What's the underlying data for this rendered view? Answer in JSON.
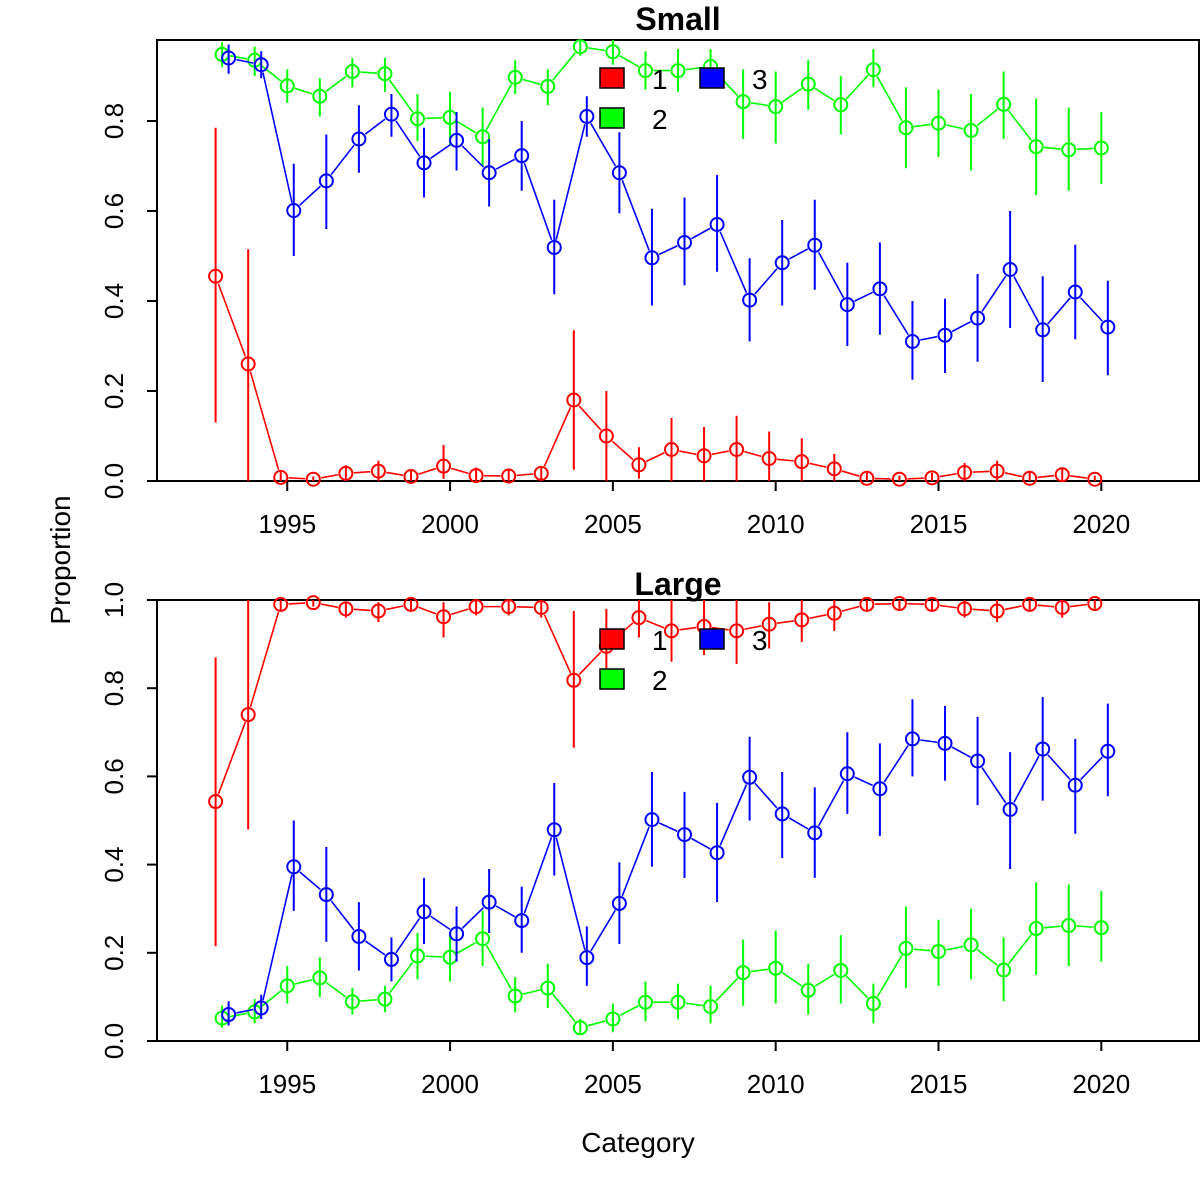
{
  "chart_data": [
    {
      "type": "scatter",
      "title": "Small",
      "xlabel": "Category",
      "ylabel": "Proportion",
      "xlim": [
        1991,
        2023
      ],
      "ylim": [
        0,
        0.98
      ],
      "xticks": [
        "1995",
        "2000",
        "2005",
        "2010",
        "2015",
        "2020"
      ],
      "yticks": [
        "0.0",
        "0.2",
        "0.4",
        "0.6",
        "0.8"
      ],
      "legend": [
        {
          "label": "1",
          "color": "#ff0000"
        },
        {
          "label": "2",
          "color": "#00ff00"
        },
        {
          "label": "3",
          "color": "#0000ff"
        }
      ],
      "series": [
        {
          "name": "1",
          "color": "#ff0000",
          "offset": -0.2,
          "x": [
            1993,
            1994,
            1995,
            1996,
            1997,
            1998,
            1999,
            2000,
            2001,
            2002,
            2003,
            2004,
            2005,
            2006,
            2007,
            2008,
            2009,
            2010,
            2011,
            2012,
            2013,
            2014,
            2015,
            2016,
            2017,
            2018,
            2019,
            2020
          ],
          "y": [
            0.455,
            0.26,
            0.008,
            0.004,
            0.017,
            0.022,
            0.01,
            0.033,
            0.012,
            0.011,
            0.017,
            0.18,
            0.1,
            0.036,
            0.07,
            0.056,
            0.07,
            0.05,
            0.043,
            0.027,
            0.006,
            0.004,
            0.007,
            0.019,
            0.022,
            0.006,
            0.014,
            0.004
          ],
          "lo": [
            0.13,
            0.0,
            0.0,
            0.0,
            0.0,
            0.0,
            0.0,
            0.005,
            0.0,
            0.0,
            0.0,
            0.025,
            0.0,
            0.005,
            0.0,
            0.0,
            0.0,
            0.0,
            0.0,
            0.0,
            0.0,
            0.0,
            0.0,
            0.0,
            0.0,
            0.0,
            0.0,
            0.0
          ],
          "hi": [
            0.785,
            0.515,
            0.02,
            0.01,
            0.035,
            0.045,
            0.025,
            0.08,
            0.03,
            0.028,
            0.03,
            0.335,
            0.2,
            0.075,
            0.14,
            0.12,
            0.145,
            0.11,
            0.095,
            0.06,
            0.018,
            0.012,
            0.018,
            0.04,
            0.045,
            0.02,
            0.03,
            0.012
          ]
        },
        {
          "name": "2",
          "color": "#00ff00",
          "offset": 0.0,
          "x": [
            1993,
            1994,
            1995,
            1996,
            1997,
            1998,
            1999,
            2000,
            2001,
            2002,
            2003,
            2004,
            2005,
            2006,
            2007,
            2008,
            2009,
            2010,
            2011,
            2012,
            2013,
            2014,
            2015,
            2016,
            2017,
            2018,
            2019,
            2020
          ],
          "y": [
            0.948,
            0.935,
            0.878,
            0.855,
            0.91,
            0.905,
            0.805,
            0.808,
            0.765,
            0.897,
            0.877,
            0.965,
            0.954,
            0.912,
            0.912,
            0.921,
            0.843,
            0.832,
            0.882,
            0.836,
            0.914,
            0.785,
            0.795,
            0.779,
            0.837,
            0.743,
            0.736,
            0.74
          ],
          "lo": [
            0.92,
            0.9,
            0.84,
            0.81,
            0.875,
            0.865,
            0.755,
            0.745,
            0.7,
            0.86,
            0.835,
            0.945,
            0.925,
            0.87,
            0.865,
            0.88,
            0.76,
            0.75,
            0.825,
            0.77,
            0.875,
            0.695,
            0.72,
            0.69,
            0.76,
            0.635,
            0.645,
            0.66
          ],
          "hi": [
            0.975,
            0.965,
            0.915,
            0.895,
            0.94,
            0.94,
            0.86,
            0.865,
            0.83,
            0.935,
            0.915,
            0.98,
            0.98,
            0.955,
            0.96,
            0.96,
            0.915,
            0.91,
            0.935,
            0.9,
            0.96,
            0.875,
            0.87,
            0.86,
            0.91,
            0.85,
            0.83,
            0.82
          ]
        },
        {
          "name": "3",
          "color": "#0000ff",
          "offset": 0.2,
          "x": [
            1993,
            1994,
            1995,
            1996,
            1997,
            1998,
            1999,
            2000,
            2001,
            2002,
            2003,
            2004,
            2005,
            2006,
            2007,
            2008,
            2009,
            2010,
            2011,
            2012,
            2013,
            2014,
            2015,
            2016,
            2017,
            2018,
            2019,
            2020
          ],
          "y": [
            0.94,
            0.925,
            0.601,
            0.667,
            0.76,
            0.815,
            0.707,
            0.757,
            0.685,
            0.723,
            0.519,
            0.81,
            0.685,
            0.496,
            0.53,
            0.57,
            0.402,
            0.485,
            0.524,
            0.392,
            0.427,
            0.31,
            0.324,
            0.362,
            0.47,
            0.336,
            0.42,
            0.342
          ],
          "lo": [
            0.905,
            0.895,
            0.5,
            0.56,
            0.685,
            0.765,
            0.63,
            0.69,
            0.61,
            0.645,
            0.415,
            0.765,
            0.595,
            0.39,
            0.435,
            0.465,
            0.31,
            0.39,
            0.425,
            0.3,
            0.325,
            0.225,
            0.24,
            0.265,
            0.34,
            0.22,
            0.315,
            0.235
          ],
          "hi": [
            0.97,
            0.955,
            0.705,
            0.77,
            0.835,
            0.86,
            0.785,
            0.82,
            0.76,
            0.8,
            0.625,
            0.855,
            0.775,
            0.605,
            0.63,
            0.68,
            0.495,
            0.58,
            0.625,
            0.485,
            0.53,
            0.4,
            0.405,
            0.46,
            0.6,
            0.455,
            0.525,
            0.445
          ]
        }
      ]
    },
    {
      "type": "scatter",
      "title": "Large",
      "xlabel": "Category",
      "ylabel": "Proportion",
      "xlim": [
        1991,
        2023
      ],
      "ylim": [
        0,
        1.0
      ],
      "xticks": [
        "1995",
        "2000",
        "2005",
        "2010",
        "2015",
        "2020"
      ],
      "yticks": [
        "0.0",
        "0.2",
        "0.4",
        "0.6",
        "0.8",
        "1.0"
      ],
      "legend": [
        {
          "label": "1",
          "color": "#ff0000"
        },
        {
          "label": "2",
          "color": "#00ff00"
        },
        {
          "label": "3",
          "color": "#0000ff"
        }
      ],
      "series": [
        {
          "name": "1",
          "color": "#ff0000",
          "offset": -0.2,
          "x": [
            1993,
            1994,
            1995,
            1996,
            1997,
            1998,
            1999,
            2000,
            2001,
            2002,
            2003,
            2004,
            2005,
            2006,
            2007,
            2008,
            2009,
            2010,
            2011,
            2012,
            2013,
            2014,
            2015,
            2016,
            2017,
            2018,
            2019,
            2020
          ],
          "y": [
            0.543,
            0.74,
            0.99,
            0.994,
            0.98,
            0.975,
            0.99,
            0.962,
            0.985,
            0.985,
            0.983,
            0.818,
            0.895,
            0.96,
            0.93,
            0.94,
            0.93,
            0.945,
            0.955,
            0.97,
            0.99,
            0.992,
            0.99,
            0.98,
            0.975,
            0.99,
            0.983,
            0.992
          ],
          "lo": [
            0.215,
            0.48,
            0.975,
            0.985,
            0.96,
            0.95,
            0.975,
            0.915,
            0.965,
            0.965,
            0.96,
            0.665,
            0.8,
            0.915,
            0.86,
            0.875,
            0.855,
            0.89,
            0.905,
            0.93,
            0.975,
            0.98,
            0.975,
            0.96,
            0.95,
            0.975,
            0.96,
            0.98
          ],
          "hi": [
            0.87,
            1.0,
            1.0,
            1.0,
            0.995,
            0.995,
            1.0,
            0.995,
            1.0,
            1.0,
            1.0,
            0.975,
            0.98,
            1.0,
            1.0,
            1.0,
            1.0,
            0.995,
            1.0,
            1.0,
            1.0,
            1.0,
            1.0,
            1.0,
            1.0,
            1.0,
            1.0,
            1.0
          ]
        },
        {
          "name": "2",
          "color": "#00ff00",
          "offset": 0.0,
          "x": [
            1993,
            1994,
            1995,
            1996,
            1997,
            1998,
            1999,
            2000,
            2001,
            2002,
            2003,
            2004,
            2005,
            2006,
            2007,
            2008,
            2009,
            2010,
            2011,
            2012,
            2013,
            2014,
            2015,
            2016,
            2017,
            2018,
            2019,
            2020
          ],
          "y": [
            0.052,
            0.066,
            0.125,
            0.143,
            0.089,
            0.095,
            0.193,
            0.19,
            0.232,
            0.102,
            0.12,
            0.03,
            0.05,
            0.088,
            0.088,
            0.078,
            0.155,
            0.165,
            0.115,
            0.16,
            0.085,
            0.21,
            0.203,
            0.218,
            0.161,
            0.255,
            0.262,
            0.257
          ],
          "lo": [
            0.03,
            0.04,
            0.085,
            0.1,
            0.06,
            0.065,
            0.14,
            0.135,
            0.17,
            0.065,
            0.075,
            0.015,
            0.02,
            0.045,
            0.05,
            0.04,
            0.08,
            0.085,
            0.06,
            0.085,
            0.04,
            0.12,
            0.125,
            0.14,
            0.09,
            0.15,
            0.17,
            0.18
          ],
          "hi": [
            0.08,
            0.095,
            0.17,
            0.19,
            0.12,
            0.125,
            0.245,
            0.245,
            0.295,
            0.145,
            0.175,
            0.05,
            0.085,
            0.135,
            0.13,
            0.125,
            0.23,
            0.25,
            0.175,
            0.24,
            0.13,
            0.305,
            0.275,
            0.3,
            0.235,
            0.36,
            0.355,
            0.34
          ]
        },
        {
          "name": "3",
          "color": "#0000ff",
          "offset": 0.2,
          "x": [
            1993,
            1994,
            1995,
            1996,
            1997,
            1998,
            1999,
            2000,
            2001,
            2002,
            2003,
            2004,
            2005,
            2006,
            2007,
            2008,
            2009,
            2010,
            2011,
            2012,
            2013,
            2014,
            2015,
            2016,
            2017,
            2018,
            2019,
            2020
          ],
          "y": [
            0.06,
            0.075,
            0.395,
            0.332,
            0.237,
            0.185,
            0.293,
            0.243,
            0.315,
            0.273,
            0.479,
            0.189,
            0.312,
            0.502,
            0.468,
            0.427,
            0.598,
            0.515,
            0.472,
            0.606,
            0.572,
            0.685,
            0.675,
            0.635,
            0.525,
            0.662,
            0.58,
            0.657
          ],
          "lo": [
            0.035,
            0.05,
            0.295,
            0.225,
            0.16,
            0.135,
            0.22,
            0.18,
            0.245,
            0.2,
            0.375,
            0.125,
            0.22,
            0.395,
            0.37,
            0.315,
            0.5,
            0.415,
            0.37,
            0.515,
            0.465,
            0.6,
            0.59,
            0.535,
            0.39,
            0.545,
            0.47,
            0.555
          ],
          "hi": [
            0.09,
            0.105,
            0.5,
            0.44,
            0.315,
            0.235,
            0.37,
            0.305,
            0.39,
            0.35,
            0.585,
            0.26,
            0.405,
            0.61,
            0.565,
            0.54,
            0.69,
            0.61,
            0.575,
            0.7,
            0.675,
            0.775,
            0.76,
            0.735,
            0.655,
            0.78,
            0.685,
            0.765
          ]
        }
      ]
    }
  ]
}
